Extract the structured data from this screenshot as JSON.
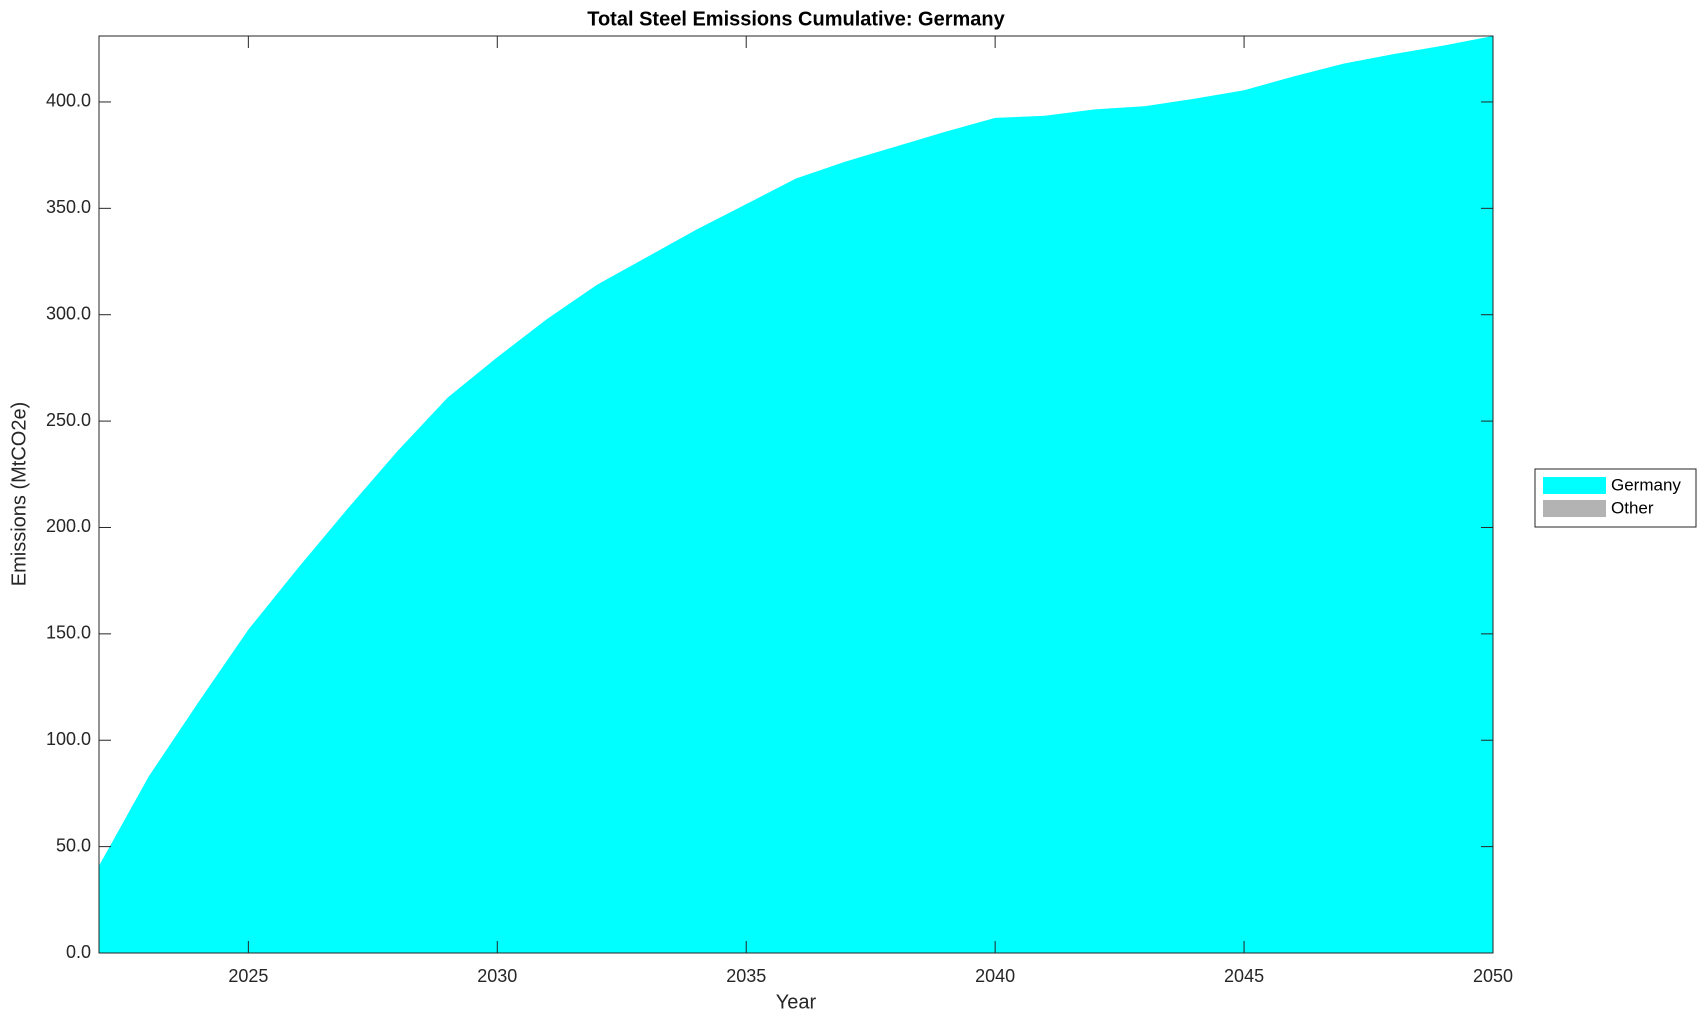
{
  "chart_data": {
    "type": "area",
    "title": "Total Steel Emissions Cumulative: Germany",
    "x_label": "Year",
    "y_label": "Emissions (MtCO2e)",
    "x": [
      2022,
      2023,
      2024,
      2025,
      2026,
      2027,
      2028,
      2029,
      2030,
      2031,
      2032,
      2033,
      2034,
      2035,
      2036,
      2037,
      2038,
      2039,
      2040,
      2041,
      2042,
      2043,
      2044,
      2045,
      2046,
      2047,
      2048,
      2049,
      2050
    ],
    "series": [
      {
        "name": "Germany",
        "color": "#00ffff",
        "values": [
          41,
          83,
          118,
          152,
          181,
          209,
          236,
          261,
          280,
          298,
          314,
          327,
          340,
          352,
          364,
          372,
          379,
          386,
          392.5,
          393.5,
          396.5,
          398,
          401.5,
          405.5,
          412,
          418,
          422.5,
          426.5,
          431
        ]
      },
      {
        "name": "Other",
        "color": "#b3b3b3",
        "values": [
          0,
          0,
          0,
          0,
          0,
          0,
          0,
          0,
          0,
          0,
          0,
          0,
          0,
          0,
          0,
          0,
          0,
          0,
          0,
          0,
          0,
          0,
          0,
          0,
          0,
          0,
          0,
          0,
          0
        ]
      }
    ],
    "stacked": true,
    "xlim": [
      2022,
      2050
    ],
    "xticks": [
      2025,
      2030,
      2035,
      2040,
      2045,
      2050
    ],
    "ylim": [
      0,
      431
    ],
    "yticks": [
      {
        "value": 0,
        "label": "0.0"
      },
      {
        "value": 50,
        "label": "50.0"
      },
      {
        "value": 100,
        "label": "100.0"
      },
      {
        "value": 150,
        "label": "150.0"
      },
      {
        "value": 200,
        "label": "200.0"
      },
      {
        "value": 250,
        "label": "250.0"
      },
      {
        "value": 300,
        "label": "300.0"
      },
      {
        "value": 350,
        "label": "350.0"
      },
      {
        "value": 400,
        "label": "400.0"
      }
    ],
    "legend_position": "right"
  }
}
